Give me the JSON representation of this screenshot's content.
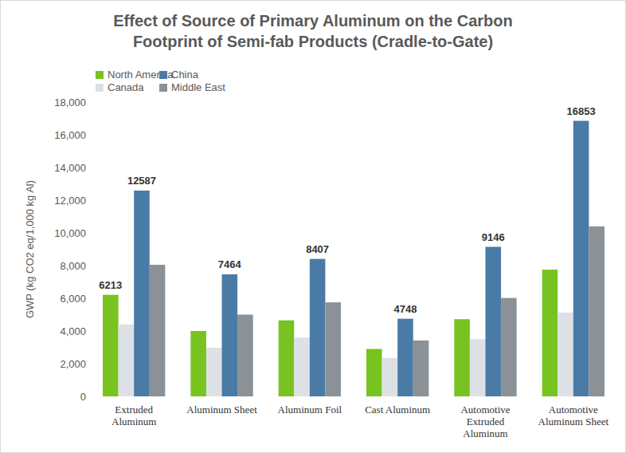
{
  "chart_data": {
    "type": "bar",
    "title": [
      "Effect of Source of Primary Aluminum on the Carbon",
      "Footprint of Semi-fab Products (Cradle-to-Gate)"
    ],
    "y_label": "GWP (kg CO2 eq/1,000 kg Al)",
    "categories": [
      "Extruded Aluminum",
      "Aluminum Sheet",
      "Aluminum Foil",
      "Cast Aluminum",
      "Automotive Extruded Aluminum",
      "Automotive Aluminum Sheet"
    ],
    "series": [
      {
        "name": "North America",
        "color": "#78c320",
        "values": [
          6213,
          4000,
          4650,
          2900,
          4720,
          7750
        ],
        "value_labels": [
          "6213",
          null,
          null,
          null,
          null,
          null
        ]
      },
      {
        "name": "Canada",
        "color": "#dde1e6",
        "values": [
          4400,
          2980,
          3600,
          2350,
          3500,
          5130
        ]
      },
      {
        "name": "China",
        "color": "#4a7ba6",
        "values": [
          12587,
          7464,
          8407,
          4748,
          9146,
          16853
        ],
        "data_labels": true
      },
      {
        "name": "Middle East",
        "color": "#8a9197",
        "values": [
          8050,
          5000,
          5750,
          3420,
          6020,
          10400
        ]
      }
    ],
    "ylim": [
      0,
      18000
    ],
    "yticks": [
      0,
      {
        "value": 2000,
        "label": "2,000"
      },
      {
        "value": 4000,
        "label": "4,000"
      },
      {
        "value": 6000,
        "label": "6,000"
      },
      {
        "value": 8000,
        "label": "8,000"
      },
      {
        "value": 10000,
        "label": "10,000"
      },
      {
        "value": 12000,
        "label": "12,000"
      },
      {
        "value": 14000,
        "label": "14,000"
      },
      {
        "value": 16000,
        "label": "16,000"
      },
      {
        "value": 18000,
        "label": "18,000"
      }
    ],
    "grid": false,
    "legend": "top-left"
  }
}
